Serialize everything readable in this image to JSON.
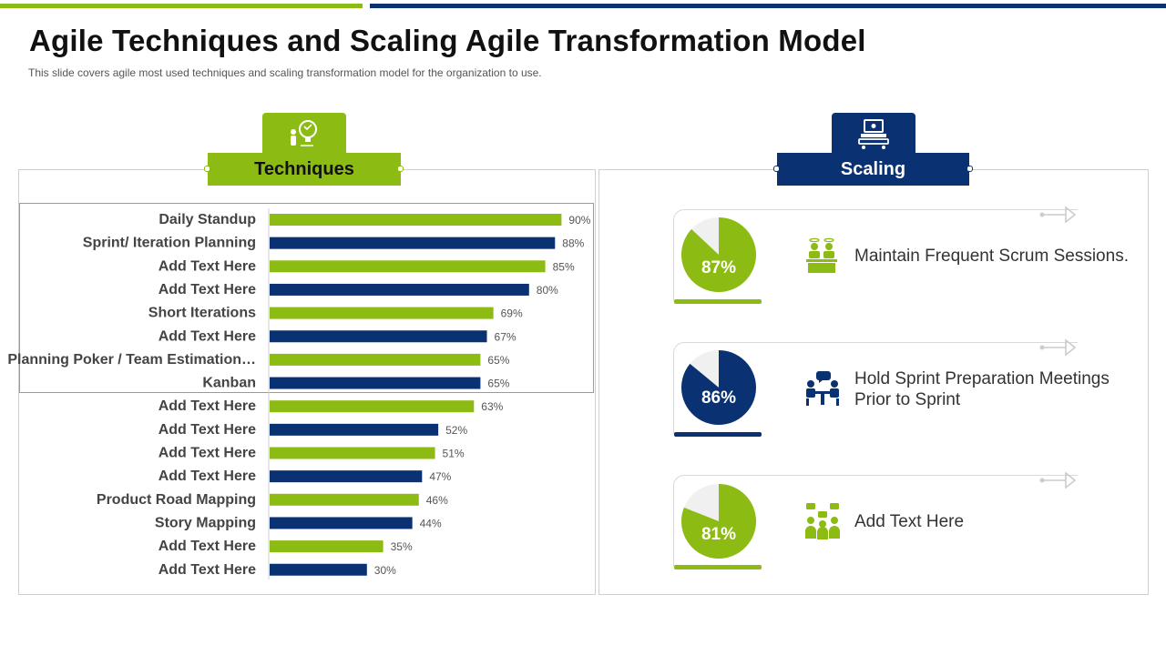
{
  "header": {
    "title": "Agile Techniques and Scaling Agile Transformation Model",
    "subtitle": "This slide covers agile most used techniques and scaling transformation model for the organization to use."
  },
  "colors": {
    "green": "#8cbb13",
    "navy": "#0a3272",
    "pie_bg": "#f0f0f0"
  },
  "techniques": {
    "label": "Techniques",
    "icon": "idea-person-icon"
  },
  "scaling": {
    "label": "Scaling",
    "icon": "laptop-stack-icon",
    "cards": [
      {
        "percent": 87,
        "percent_label": "87%",
        "color": "#8cbb13",
        "text": "Maintain Frequent Scrum Sessions.",
        "icon": "meeting-icon"
      },
      {
        "percent": 86,
        "percent_label": "86%",
        "color": "#0a3272",
        "text": "Hold Sprint Preparation Meetings Prior to Sprint",
        "icon": "discussion-table-icon"
      },
      {
        "percent": 81,
        "percent_label": "81%",
        "color": "#8cbb13",
        "text": "Add Text Here",
        "icon": "team-chat-icon"
      }
    ]
  },
  "chart_data": {
    "type": "bar",
    "orientation": "horizontal",
    "categories": [
      "Daily Standup",
      "Sprint/ Iteration Planning",
      "Add Text Here",
      "Add Text Here",
      "Short Iterations",
      "Add Text Here",
      "Planning Poker / Team Estimation…",
      "Kanban",
      "Add Text Here",
      "Add Text Here",
      "Add Text Here",
      "Add Text Here",
      "Product Road Mapping",
      "Story Mapping",
      "Add Text Here",
      "Add Text Here"
    ],
    "values": [
      90,
      88,
      85,
      80,
      69,
      67,
      65,
      65,
      63,
      52,
      51,
      47,
      46,
      44,
      35,
      30
    ],
    "value_labels": [
      "90%",
      "88%",
      "85%",
      "80%",
      "69%",
      "67%",
      "65%",
      "65%",
      "63%",
      "52%",
      "51%",
      "47%",
      "46%",
      "44%",
      "35%",
      "30%"
    ],
    "bar_colors": [
      "#8cbb13",
      "#0a3272"
    ],
    "xlim": [
      0,
      100
    ]
  }
}
